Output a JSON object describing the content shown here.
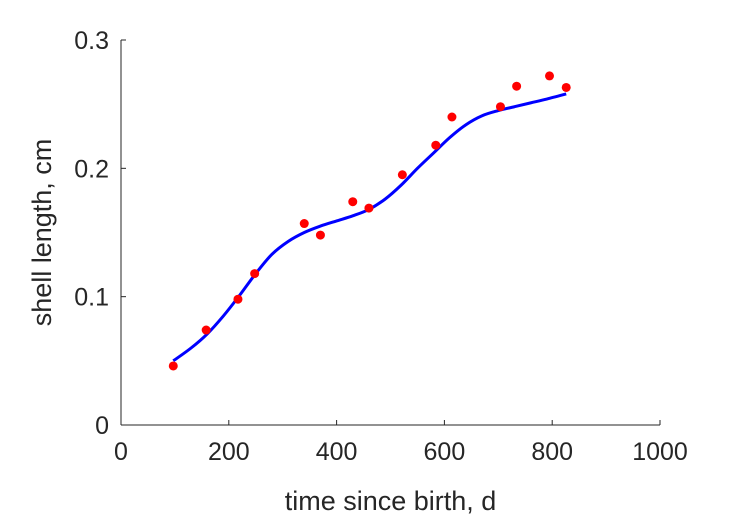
{
  "chart_data": {
    "type": "scatter",
    "title": "",
    "xlabel": "time since birth, d",
    "ylabel": "shell length, cm",
    "xlim": [
      0,
      1000
    ],
    "ylim": [
      0,
      0.3
    ],
    "xticks": [
      "0",
      "200",
      "400",
      "600",
      "800",
      "1000"
    ],
    "yticks": [
      "0",
      "0.1",
      "0.2",
      "0.3"
    ],
    "grid": false,
    "legend": "none",
    "colors": {
      "points": "#ff0000",
      "line": "#0000ff",
      "axes": "#262626"
    },
    "series": [
      {
        "type": "scatter",
        "x": [
          97,
          158,
          217,
          248,
          340,
          370,
          430,
          460,
          522,
          584,
          614,
          704,
          734,
          795,
          826
        ],
        "y": [
          0.046,
          0.074,
          0.098,
          0.118,
          0.157,
          0.148,
          0.174,
          0.169,
          0.195,
          0.218,
          0.24,
          0.248,
          0.264,
          0.272,
          0.263
        ]
      },
      {
        "type": "line",
        "x": [
          97,
          130,
          160,
          190,
          220,
          250,
          280,
          310,
          340,
          370,
          400,
          430,
          460,
          490,
          520,
          550,
          580,
          610,
          640,
          670,
          700,
          730,
          760,
          790,
          826
        ],
        "y": [
          0.05,
          0.06,
          0.071,
          0.085,
          0.101,
          0.118,
          0.133,
          0.143,
          0.15,
          0.155,
          0.159,
          0.163,
          0.168,
          0.176,
          0.187,
          0.2,
          0.212,
          0.224,
          0.234,
          0.241,
          0.245,
          0.248,
          0.251,
          0.254,
          0.258
        ]
      }
    ]
  }
}
